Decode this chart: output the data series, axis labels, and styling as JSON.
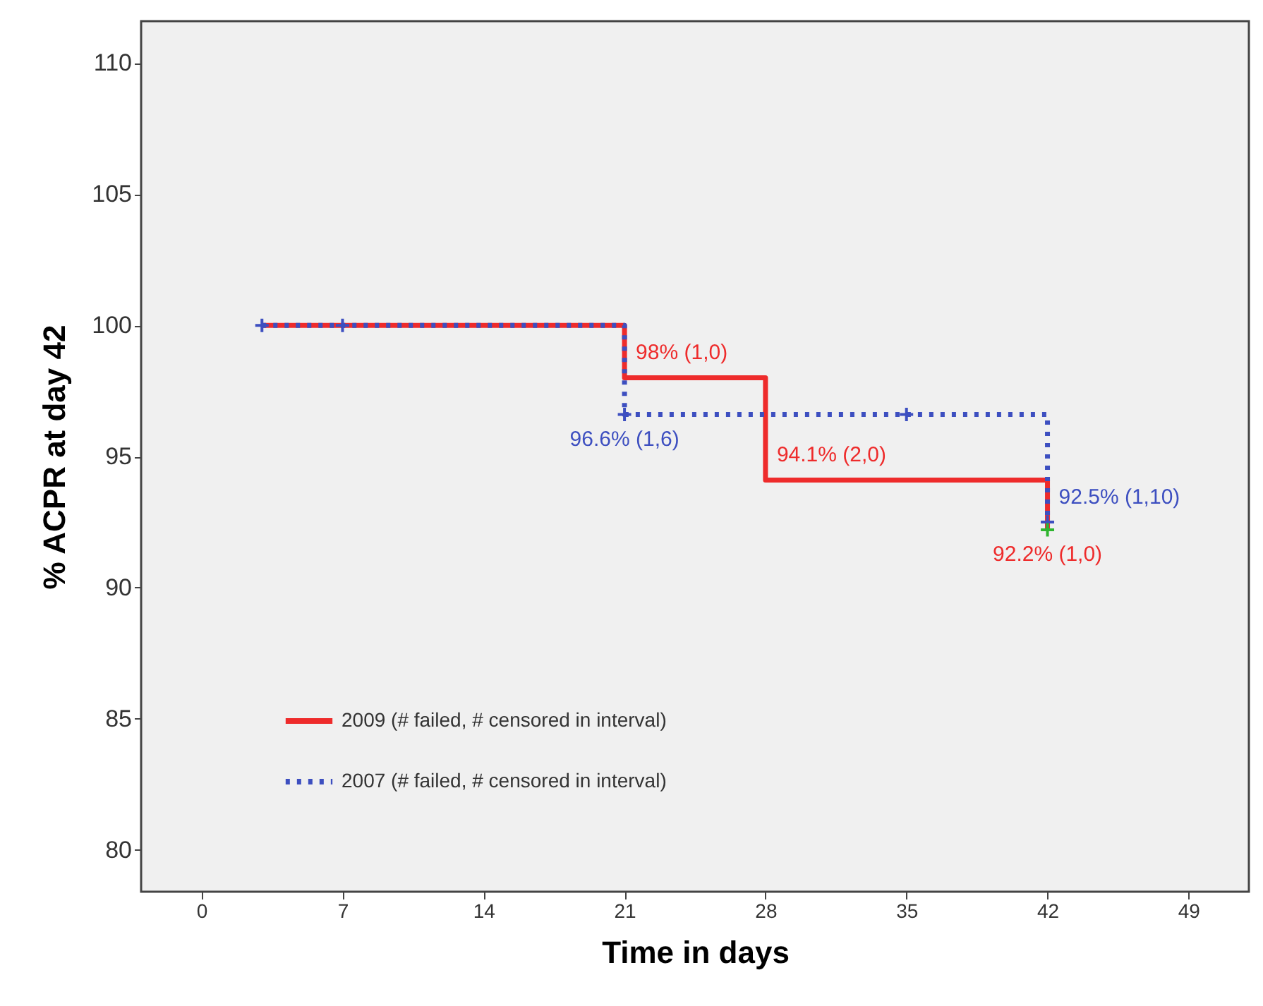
{
  "chart_data": {
    "type": "step",
    "xlabel": "Time in days",
    "ylabel": "% ACPR at day 42",
    "xlim": [
      -3,
      52
    ],
    "ylim": [
      78.4,
      111.6
    ],
    "xticks": [
      0,
      7,
      14,
      21,
      28,
      35,
      42,
      49
    ],
    "yticks": [
      80,
      85,
      90,
      95,
      100,
      105,
      110
    ],
    "grid": false,
    "legend": "bottom left",
    "series": [
      {
        "name": "2009 (# failed, # censored in interval)",
        "color": "#ee2b2b",
        "line_style": "solid",
        "x": [
          3,
          21,
          28,
          42
        ],
        "values": [
          100,
          98,
          94.1,
          92.2
        ]
      },
      {
        "name": "2007 (# failed, # censored in interval)",
        "color": "#3d4fc0",
        "line_style": "dotted",
        "x": [
          3,
          21,
          42
        ],
        "values": [
          100,
          96.6,
          92.5
        ]
      },
      {
        "type": "scatter",
        "color": "#3d4fc0",
        "marker": "cross",
        "x": [
          3,
          7,
          21,
          35,
          42
        ],
        "values": [
          100,
          100,
          96.6,
          96.6,
          92.5
        ]
      },
      {
        "type": "scatter",
        "color": "#2fb52f",
        "marker": "cross",
        "x": [
          42
        ],
        "values": [
          92.2
        ]
      }
    ],
    "annotations": [
      {
        "text": "98% (1,0)",
        "x": 21,
        "y": 98
      },
      {
        "text": "96.6% (1,6)",
        "x": 21,
        "y": 96.6
      },
      {
        "text": "94.1% (2,0)",
        "x": 28,
        "y": 94.1
      },
      {
        "text": "92.5% (1,10)",
        "x": 42,
        "y": 92.5
      },
      {
        "text": "92.2% (1,0)",
        "x": 42,
        "y": 92.2
      }
    ]
  }
}
